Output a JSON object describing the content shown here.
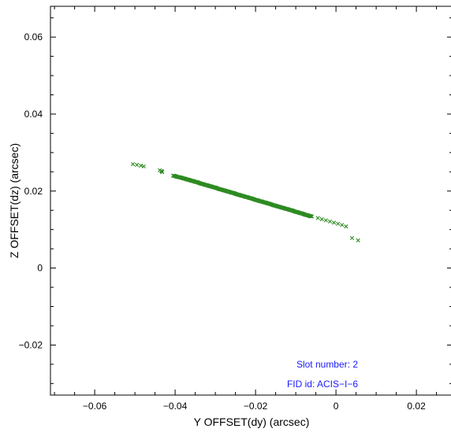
{
  "chart_data": {
    "type": "scatter",
    "xlabel": "Y OFFSET(dy) (arcsec)",
    "ylabel": "Z OFFSET(dz) (arcsec)",
    "xlim": [
      -0.071,
      0.029
    ],
    "ylim": [
      -0.033,
      0.068
    ],
    "x_ticks": [
      -0.06,
      -0.04,
      -0.02,
      0,
      0.02
    ],
    "x_tick_labels": [
      "−0.06",
      "−0.04",
      "−0.02",
      "0",
      "0.02"
    ],
    "y_ticks": [
      -0.02,
      0,
      0.02,
      0.04,
      0.06
    ],
    "y_tick_labels": [
      "−0.02",
      "0",
      "0.02",
      "0.04",
      "0.06"
    ],
    "grid": false,
    "marker": "x",
    "colors": {
      "points": "#2e8b22",
      "annotations": "#1a1aff",
      "axes": "#000000"
    },
    "annotations": [
      "Slot number: 2",
      "FID id: ACIS−I−6"
    ],
    "points": [
      [
        -0.0505,
        0.027
      ],
      [
        -0.0495,
        0.0268
      ],
      [
        -0.0485,
        0.0266
      ],
      [
        -0.0478,
        0.0264
      ],
      [
        -0.0438,
        0.0254
      ],
      [
        -0.0433,
        0.0251
      ],
      [
        -0.0432,
        0.0249
      ],
      [
        -0.0434,
        0.0252
      ],
      [
        -0.0405,
        0.024
      ],
      [
        -0.04,
        0.0239
      ],
      [
        -0.0395,
        0.0237
      ],
      [
        -0.039,
        0.0236
      ],
      [
        -0.0385,
        0.0235
      ],
      [
        -0.038,
        0.0233
      ],
      [
        -0.0375,
        0.0232
      ],
      [
        -0.037,
        0.023
      ],
      [
        -0.0365,
        0.0229
      ],
      [
        -0.036,
        0.0227
      ],
      [
        -0.0355,
        0.0226
      ],
      [
        -0.035,
        0.0224
      ],
      [
        -0.0345,
        0.0223
      ],
      [
        -0.034,
        0.0221
      ],
      [
        -0.0335,
        0.0219
      ],
      [
        -0.033,
        0.0218
      ],
      [
        -0.0325,
        0.0216
      ],
      [
        -0.032,
        0.0215
      ],
      [
        -0.0315,
        0.0213
      ],
      [
        -0.031,
        0.0212
      ],
      [
        -0.0305,
        0.021
      ],
      [
        -0.03,
        0.0209
      ],
      [
        -0.0295,
        0.0207
      ],
      [
        -0.029,
        0.0205
      ],
      [
        -0.0285,
        0.0204
      ],
      [
        -0.028,
        0.0202
      ],
      [
        -0.0275,
        0.0201
      ],
      [
        -0.027,
        0.0199
      ],
      [
        -0.0265,
        0.0198
      ],
      [
        -0.026,
        0.0196
      ],
      [
        -0.0255,
        0.0195
      ],
      [
        -0.025,
        0.0193
      ],
      [
        -0.0245,
        0.0191
      ],
      [
        -0.024,
        0.019
      ],
      [
        -0.0235,
        0.0188
      ],
      [
        -0.023,
        0.0187
      ],
      [
        -0.0225,
        0.0185
      ],
      [
        -0.022,
        0.0184
      ],
      [
        -0.0215,
        0.0182
      ],
      [
        -0.021,
        0.0181
      ],
      [
        -0.0205,
        0.0179
      ],
      [
        -0.02,
        0.0177
      ],
      [
        -0.0195,
        0.0176
      ],
      [
        -0.019,
        0.0174
      ],
      [
        -0.0185,
        0.0173
      ],
      [
        -0.018,
        0.0171
      ],
      [
        -0.0175,
        0.017
      ],
      [
        -0.017,
        0.0168
      ],
      [
        -0.0165,
        0.0167
      ],
      [
        -0.016,
        0.0165
      ],
      [
        -0.0155,
        0.0163
      ],
      [
        -0.015,
        0.0162
      ],
      [
        -0.0145,
        0.016
      ],
      [
        -0.014,
        0.0159
      ],
      [
        -0.0135,
        0.0157
      ],
      [
        -0.013,
        0.0156
      ],
      [
        -0.0125,
        0.0154
      ],
      [
        -0.012,
        0.0153
      ],
      [
        -0.0115,
        0.0151
      ],
      [
        -0.011,
        0.015
      ],
      [
        -0.0105,
        0.0148
      ],
      [
        -0.01,
        0.0146
      ],
      [
        -0.0095,
        0.0145
      ],
      [
        -0.009,
        0.0143
      ],
      [
        -0.0085,
        0.0142
      ],
      [
        -0.008,
        0.014
      ],
      [
        -0.0075,
        0.0138
      ],
      [
        -0.007,
        0.0137
      ],
      [
        -0.0065,
        0.0135
      ],
      [
        -0.006,
        0.0134
      ],
      [
        -0.0045,
        0.013
      ],
      [
        -0.0035,
        0.0127
      ],
      [
        -0.0025,
        0.0124
      ],
      [
        -0.0015,
        0.0121
      ],
      [
        -0.0005,
        0.0118
      ],
      [
        0.0005,
        0.0115
      ],
      [
        0.0015,
        0.0112
      ],
      [
        0.0025,
        0.0108
      ],
      [
        0.004,
        0.0078
      ],
      [
        0.0055,
        0.0072
      ]
    ]
  }
}
